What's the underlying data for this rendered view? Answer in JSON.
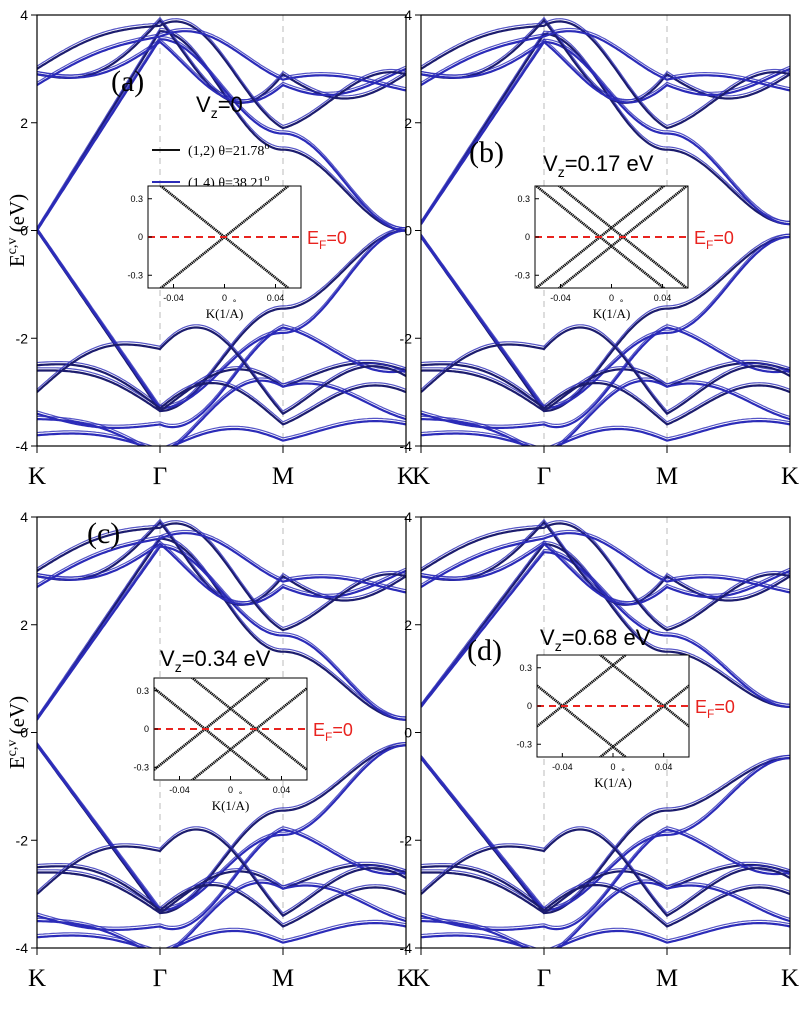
{
  "colors": {
    "band_primary": "#1c1c6e",
    "band_secondary": "#2b2bb8",
    "inset_band": "#111111",
    "fermi_line": "#e8231f",
    "axis": "#000000",
    "gamma_m_guide": "#bbbbbb"
  },
  "shared": {
    "y_axis_label_main": "E",
    "y_axis_label_sup": "c,v",
    "y_axis_label_rest": " (eV)",
    "k_tick_labels": [
      "K",
      "Γ",
      "M",
      "K"
    ],
    "y_tick_labels": [
      "-4",
      "-2",
      "0",
      "2",
      "4"
    ],
    "inset_x_label_main": "K(1/",
    "inset_x_label_A": "A",
    "inset_x_label_ring": "°",
    "inset_x_label_end": ")",
    "inset_x_ticks": [
      "-0.04",
      "0",
      "0.04"
    ],
    "inset_y_ticks": [
      "0.3",
      "0",
      "-0.3"
    ],
    "fermi_label_main": "E",
    "fermi_label_sub": "F",
    "fermi_label_rest": "=0"
  },
  "panels": [
    {
      "id": "a",
      "label": "(a)",
      "vz_main": "V",
      "vz_sub": "z",
      "vz_rest": "=0",
      "legend": [
        {
          "text": "(1,2) θ=21.78",
          "deg": "o",
          "color": "#111111"
        },
        {
          "text": "(1,4) θ=38.21",
          "deg": "o",
          "color": "#2b2bb8"
        }
      ]
    },
    {
      "id": "b",
      "label": "(b)",
      "vz_main": "V",
      "vz_sub": "z",
      "vz_rest": "=0.17 eV",
      "legend": []
    },
    {
      "id": "c",
      "label": "(c)",
      "vz_main": "V",
      "vz_sub": "z",
      "vz_rest": "=0.34 eV",
      "legend": []
    },
    {
      "id": "d",
      "label": "(d)",
      "vz_main": "V",
      "vz_sub": "z",
      "vz_rest": "=0.68 eV",
      "legend": []
    }
  ],
  "chart_data": [
    {
      "type": "line",
      "panel": "(a)",
      "ylabel": "E^{c,v} (eV)",
      "ylim": [
        -4,
        4
      ],
      "x_ticks": [
        "K",
        "Γ",
        "M",
        "K"
      ],
      "annotation": "V_z=0",
      "series": [
        {
          "name": "(1,2) θ=21.78o",
          "x": [
            0,
            1,
            2,
            3
          ],
          "values": [
            0.0,
            3.7,
            1.5,
            0.0
          ]
        },
        {
          "name": "(1,2) θ=21.78o",
          "x": [
            0,
            1,
            2,
            3
          ],
          "values": [
            0.0,
            -3.35,
            -1.45,
            0.0
          ]
        },
        {
          "name": "(1,4) θ=38.21o",
          "x": [
            0,
            1,
            2,
            3
          ],
          "values": [
            2.9,
            3.55,
            1.8,
            2.9
          ]
        },
        {
          "name": "(1,4) θ=38.21o",
          "x": [
            0,
            1,
            2,
            3
          ],
          "values": [
            -2.6,
            -3.35,
            -1.9,
            -2.6
          ]
        }
      ],
      "inset": {
        "xlabel": "K(1/Å)",
        "xlim": [
          -0.06,
          0.06
        ],
        "ylim": [
          -0.4,
          0.4
        ],
        "dirac_crossings_k": [
          0.0
        ],
        "fermi_level": 0
      }
    },
    {
      "type": "line",
      "panel": "(b)",
      "ylabel": "",
      "ylim": [
        -4,
        4
      ],
      "x_ticks": [
        "K",
        "Γ",
        "M",
        "K"
      ],
      "annotation": "V_z=0.17 eV",
      "series": [
        {
          "name": "",
          "x": [
            0,
            1,
            2,
            3
          ],
          "values": [
            0.0,
            3.6,
            1.5,
            0.0
          ]
        },
        {
          "name": "",
          "x": [
            0,
            1,
            2,
            3
          ],
          "values": [
            0.0,
            -3.35,
            -1.45,
            0.0
          ]
        }
      ],
      "inset": {
        "xlabel": "K(1/Å)",
        "xlim": [
          -0.06,
          0.06
        ],
        "ylim": [
          -0.4,
          0.4
        ],
        "dirac_crossings_k": [
          -0.009,
          0.009
        ],
        "fermi_level": 0
      }
    },
    {
      "type": "line",
      "panel": "(c)",
      "ylabel": "E^{c,v} (eV)",
      "ylim": [
        -4,
        4
      ],
      "x_ticks": [
        "K",
        "Γ",
        "M",
        "K"
      ],
      "annotation": "V_z=0.34 eV",
      "series": [
        {
          "name": "",
          "x": [
            0,
            1,
            2,
            3
          ],
          "values": [
            0.1,
            3.5,
            1.5,
            0.1
          ]
        },
        {
          "name": "",
          "x": [
            0,
            1,
            2,
            3
          ],
          "values": [
            -0.1,
            -3.3,
            -1.45,
            -0.1
          ]
        }
      ],
      "inset": {
        "xlabel": "K(1/Å)",
        "xlim": [
          -0.06,
          0.06
        ],
        "ylim": [
          -0.4,
          0.4
        ],
        "dirac_crossings_k": [
          -0.02,
          0.02
        ],
        "fermi_level": 0
      }
    },
    {
      "type": "line",
      "panel": "(d)",
      "ylabel": "",
      "ylim": [
        -4,
        4
      ],
      "x_ticks": [
        "K",
        "Γ",
        "M",
        "K"
      ],
      "annotation": "V_z=0.68 eV",
      "series": [
        {
          "name": "",
          "x": [
            0,
            1,
            2,
            3
          ],
          "values": [
            0.5,
            3.3,
            1.5,
            0.5
          ]
        },
        {
          "name": "",
          "x": [
            0,
            1,
            2,
            3
          ],
          "values": [
            -0.5,
            -3.25,
            -1.45,
            -0.5
          ]
        }
      ],
      "inset": {
        "xlabel": "K(1/Å)",
        "xlim": [
          -0.06,
          0.06
        ],
        "ylim": [
          -0.4,
          0.4
        ],
        "dirac_crossings_k": [
          -0.04,
          0.04
        ],
        "fermi_level": 0
      }
    }
  ]
}
